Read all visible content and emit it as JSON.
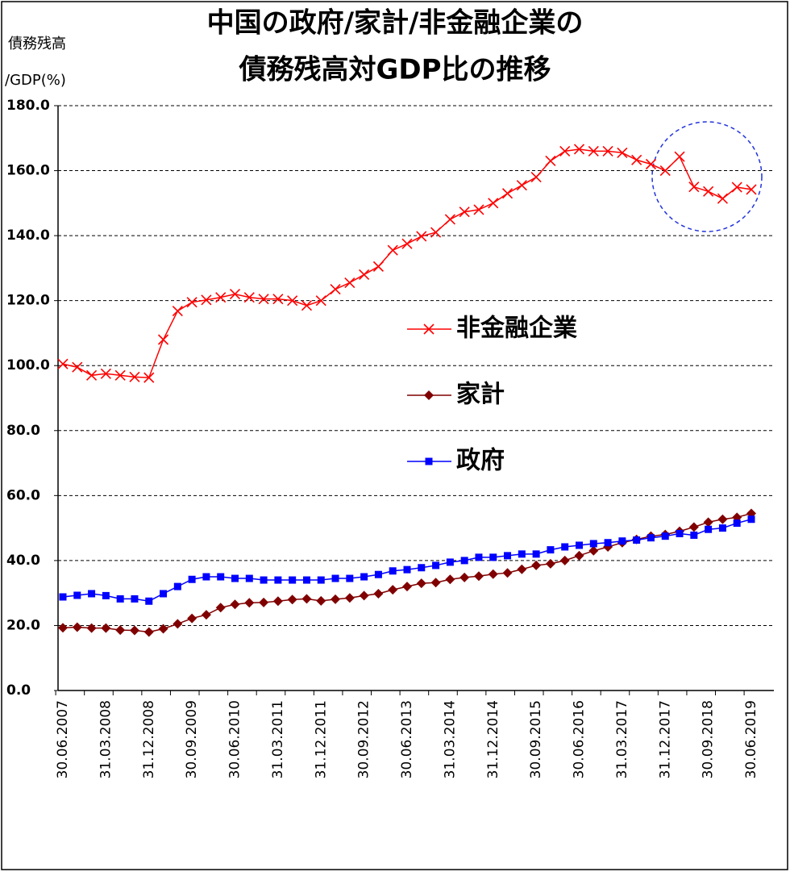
{
  "chart_data": {
    "type": "line",
    "title": [
      "中国の政府/家計/非金融企業の",
      "債務残高対GDP比の推移"
    ],
    "ylabel": [
      "債務残高",
      "/GDP(%)"
    ],
    "categories": [
      "30.06.2007",
      null,
      null,
      "31.03.2008",
      null,
      null,
      "31.12.2008",
      null,
      null,
      "30.09.2009",
      null,
      null,
      "30.06.2010",
      null,
      null,
      "31.03.2011",
      null,
      null,
      "31.12.2011",
      null,
      null,
      "30.09.2012",
      null,
      null,
      "30.06.2013",
      null,
      null,
      "31.03.2014",
      null,
      null,
      "31.12.2014",
      null,
      null,
      "30.09.2015",
      null,
      null,
      "30.06.2016",
      null,
      null,
      "31.03.2017",
      null,
      null,
      "31.12.2017",
      null,
      null,
      "30.09.2018",
      null,
      null,
      "30.06.2019"
    ],
    "series": [
      {
        "name": "非金融企業",
        "color": "#ff0000",
        "marker": "x",
        "values": [
          100.5,
          99.5,
          97,
          97.5,
          97,
          96.5,
          96.3,
          108,
          116.8,
          119.5,
          120.2,
          121,
          122,
          121,
          120.5,
          120.5,
          120,
          118.5,
          120,
          123.5,
          125.5,
          128,
          130.5,
          135.5,
          137.5,
          139.8,
          141,
          145,
          147.3,
          148,
          150,
          153,
          155.5,
          158,
          163,
          166,
          166.6,
          166,
          166,
          165.5,
          163.3,
          162,
          160,
          164.3,
          155,
          153.6,
          151.4,
          154.9,
          154.2
        ]
      },
      {
        "name": "家計",
        "color": "#800000",
        "marker": "diamond",
        "values": [
          19.3,
          19.5,
          19.2,
          19.2,
          18.6,
          18.5,
          18.0,
          19.0,
          20.5,
          22.2,
          23.3,
          25.5,
          26.5,
          27,
          27.1,
          27.5,
          28,
          28.2,
          27.6,
          28.1,
          28.5,
          29.2,
          29.8,
          31,
          32,
          33,
          33.2,
          34.2,
          34.8,
          35.2,
          35.8,
          36.2,
          37.3,
          38.5,
          39,
          40,
          41.5,
          43,
          44.2,
          45.5,
          46.5,
          47.5,
          48,
          49,
          50.3,
          51.8,
          52.7,
          53.3,
          54.5
        ]
      },
      {
        "name": "政府",
        "color": "#0000ff",
        "marker": "square",
        "values": [
          28.8,
          29.3,
          29.8,
          29.2,
          28.2,
          28.2,
          27.5,
          29.8,
          32,
          34.2,
          35,
          35,
          34.5,
          34.5,
          34,
          34,
          34,
          34,
          34,
          34.5,
          34.5,
          35,
          35.7,
          36.8,
          37.2,
          37.8,
          38.5,
          39.5,
          40,
          41,
          41,
          41.5,
          42,
          42,
          43.3,
          44.2,
          44.7,
          45.2,
          45.5,
          46,
          46.3,
          47,
          47.5,
          48.3,
          47.8,
          49.6,
          50,
          51.5,
          52.7
        ]
      }
    ],
    "ylim": [
      0,
      180
    ],
    "yticks": [
      {
        "value": 0,
        "label": "0.0"
      },
      {
        "value": 20,
        "label": "20.0"
      },
      {
        "value": 40,
        "label": "40.0"
      },
      {
        "value": 60,
        "label": "60.0"
      },
      {
        "value": 80,
        "label": "80.0"
      },
      {
        "value": 100,
        "label": "100.0"
      },
      {
        "value": 120,
        "label": "120.0"
      },
      {
        "value": 140,
        "label": "140.0"
      },
      {
        "value": 160,
        "label": "160.0"
      },
      {
        "value": 180,
        "label": "180.0"
      }
    ],
    "grid": true
  }
}
